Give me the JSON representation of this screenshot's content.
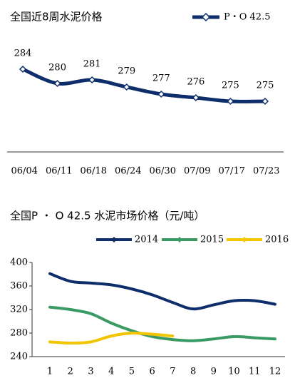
{
  "chart_data": [
    {
      "type": "line",
      "title": "全国近8周水泥价格",
      "categories": [
        "06/04",
        "06/11",
        "06/18",
        "06/24",
        "06/30",
        "07/09",
        "07/17",
        "07/23"
      ],
      "series": [
        {
          "name": "P・O 42.5",
          "color": "#0d2d6b",
          "values": [
            284,
            280,
            281,
            279,
            277,
            276,
            275,
            275
          ]
        }
      ]
    },
    {
      "type": "line",
      "title": "全国P ・ O 42.5 水泥市场价格（元/吨）",
      "categories": [
        "1",
        "2",
        "3",
        "4",
        "5",
        "6",
        "7",
        "8",
        "9",
        "10",
        "11",
        "12"
      ],
      "ylim": [
        240,
        400
      ],
      "yticks": [
        240,
        280,
        320,
        360,
        400
      ],
      "series": [
        {
          "name": "2014",
          "color": "#0d2d6b",
          "values": [
            381,
            368,
            365,
            362,
            355,
            345,
            332,
            321,
            328,
            335,
            335,
            329
          ]
        },
        {
          "name": "2015",
          "color": "#3a9a63",
          "values": [
            324,
            320,
            313,
            297,
            284,
            274,
            269,
            267,
            270,
            274,
            272,
            270
          ]
        },
        {
          "name": "2016",
          "color": "#f2c500",
          "values": [
            265,
            263,
            265,
            275,
            280,
            278,
            275,
            null,
            null,
            null,
            null,
            null
          ]
        }
      ]
    }
  ]
}
